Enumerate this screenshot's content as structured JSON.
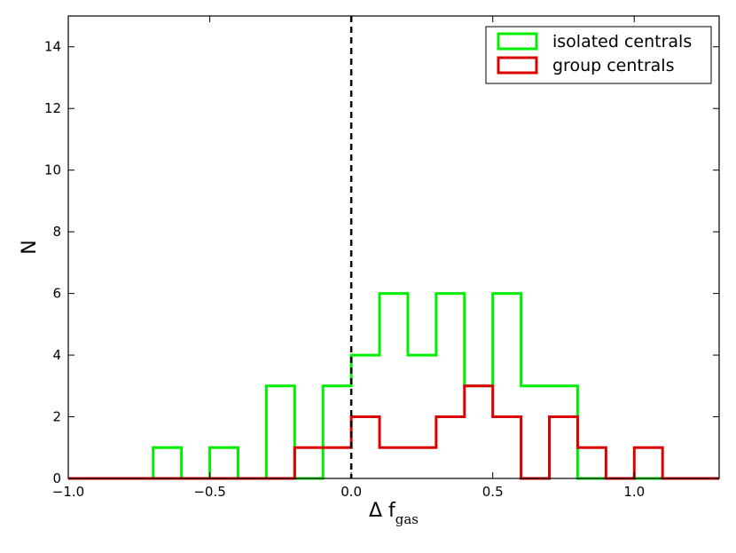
{
  "chart_data": {
    "type": "histogram",
    "xlim": [
      -1.0,
      1.3
    ],
    "ylim": [
      0,
      15
    ],
    "x_ticks": [
      -1.0,
      -0.5,
      0.0,
      0.5,
      1.0
    ],
    "x_tick_labels": [
      "−1.0",
      "−0.5",
      "0.0",
      "0.5",
      "1.0"
    ],
    "y_ticks": [
      0,
      2,
      4,
      6,
      8,
      10,
      12,
      14
    ],
    "y_tick_labels": [
      "0",
      "2",
      "4",
      "6",
      "8",
      "10",
      "12",
      "14"
    ],
    "xlabel_main": "Δ f",
    "xlabel_sub": "gas",
    "ylabel": "N",
    "bin_edges": [
      -1.0,
      -0.9,
      -0.8,
      -0.7,
      -0.6,
      -0.5,
      -0.4,
      -0.3,
      -0.2,
      -0.1,
      0.0,
      0.1,
      0.2,
      0.3,
      0.4,
      0.5,
      0.6,
      0.7,
      0.8,
      0.9,
      1.0,
      1.1,
      1.2,
      1.3
    ],
    "series": [
      {
        "name": "isolated centrals",
        "color": "#00ee00",
        "counts": [
          0,
          0,
          0,
          1,
          0,
          1,
          0,
          3,
          0,
          3,
          4,
          6,
          4,
          6,
          3,
          6,
          3,
          3,
          0,
          0,
          0,
          0,
          0
        ]
      },
      {
        "name": "group centrals",
        "color": "#dd0000",
        "counts": [
          0,
          0,
          0,
          0,
          0,
          0,
          0,
          0,
          1,
          1,
          2,
          1,
          1,
          2,
          3,
          2,
          0,
          2,
          1,
          0,
          1,
          0,
          0
        ]
      }
    ],
    "reference_line": {
      "x": 0.0,
      "style": "dashed",
      "color": "#000000"
    },
    "legend_position": "top-right",
    "grid": false
  }
}
